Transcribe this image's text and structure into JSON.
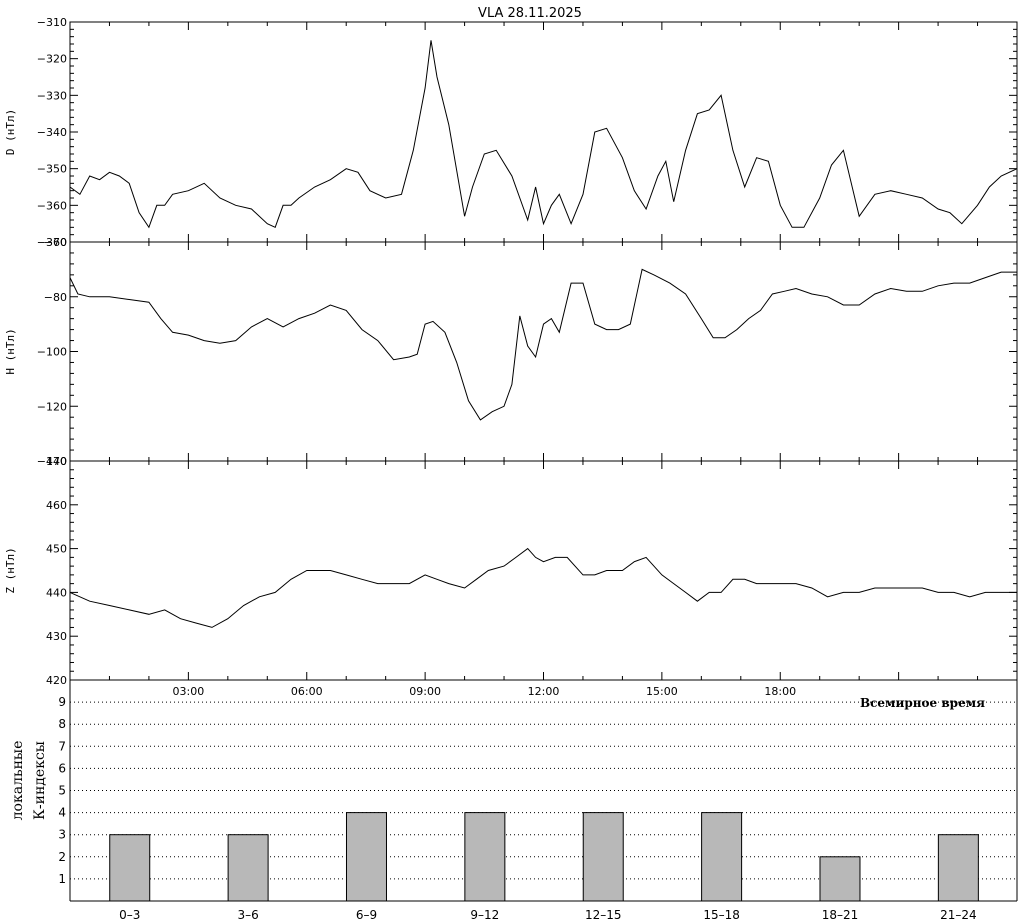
{
  "title": "VLA   28.11.2025",
  "chart_data": [
    {
      "type": "line",
      "ylabel": "D (нТл)",
      "ylim": [
        -370,
        -310
      ],
      "yticks": [
        -370,
        -360,
        -350,
        -340,
        -330,
        -320,
        -310
      ],
      "xlim": [
        0,
        24
      ],
      "series": [
        {
          "x": [
            0,
            0.25,
            0.5,
            0.75,
            1,
            1.25,
            1.5,
            1.75,
            2,
            2.2,
            2.4,
            2.6,
            3,
            3.4,
            3.8,
            4.2,
            4.6,
            5,
            5.2,
            5.4,
            5.6,
            5.8,
            6.2,
            6.6,
            7,
            7.3,
            7.6,
            8,
            8.4,
            8.7,
            9,
            9.15,
            9.3,
            9.6,
            10,
            10.2,
            10.5,
            10.8,
            11.2,
            11.6,
            11.8,
            12,
            12.2,
            12.4,
            12.7,
            13,
            13.3,
            13.6,
            14,
            14.3,
            14.6,
            14.9,
            15.1,
            15.3,
            15.6,
            15.9,
            16.2,
            16.5,
            16.8,
            17.1,
            17.4,
            17.7,
            18,
            18.3,
            18.6,
            19,
            19.3,
            19.6,
            20,
            20.4,
            20.8,
            21.2,
            21.6,
            22,
            22.3,
            22.6,
            23,
            23.3,
            23.6,
            24
          ],
          "y": [
            -355,
            -357,
            -352,
            -353,
            -351,
            -352,
            -354,
            -362,
            -366,
            -360,
            -360,
            -357,
            -356,
            -354,
            -358,
            -360,
            -361,
            -365,
            -366,
            -360,
            -360,
            -358,
            -355,
            -353,
            -350,
            -351,
            -356,
            -358,
            -357,
            -345,
            -328,
            -315,
            -325,
            -338,
            -363,
            -355,
            -346,
            -345,
            -352,
            -364,
            -355,
            -365,
            -360,
            -357,
            -365,
            -357,
            -340,
            -339,
            -347,
            -356,
            -361,
            -352,
            -348,
            -359,
            -345,
            -335,
            -334,
            -330,
            -345,
            -355,
            -347,
            -348,
            -360,
            -366,
            -366,
            -358,
            -349,
            -345,
            -363,
            -357,
            -356,
            -357,
            -358,
            -361,
            -362,
            -365,
            -360,
            -355,
            -352,
            -350
          ]
        }
      ]
    },
    {
      "type": "line",
      "ylabel": "H (нТл)",
      "ylim": [
        -140,
        -60
      ],
      "yticks": [
        -140,
        -120,
        -100,
        -80,
        -60
      ],
      "xlim": [
        0,
        24
      ],
      "series": [
        {
          "x": [
            0,
            0.2,
            0.5,
            1,
            1.5,
            2,
            2.3,
            2.6,
            3,
            3.4,
            3.8,
            4.2,
            4.6,
            5,
            5.4,
            5.8,
            6.2,
            6.6,
            7,
            7.4,
            7.8,
            8.2,
            8.6,
            8.8,
            9,
            9.2,
            9.5,
            9.8,
            10.1,
            10.4,
            10.7,
            11,
            11.2,
            11.4,
            11.6,
            11.8,
            12,
            12.2,
            12.4,
            12.7,
            13,
            13.3,
            13.6,
            13.9,
            14.2,
            14.5,
            14.8,
            15.2,
            15.6,
            16,
            16.3,
            16.6,
            16.9,
            17.2,
            17.5,
            17.8,
            18.1,
            18.4,
            18.8,
            19.2,
            19.6,
            20,
            20.4,
            20.8,
            21.2,
            21.6,
            22,
            22.4,
            22.8,
            23.2,
            23.6,
            24
          ],
          "y": [
            -73,
            -79,
            -80,
            -80,
            -81,
            -82,
            -88,
            -93,
            -94,
            -96,
            -97,
            -96,
            -91,
            -88,
            -91,
            -88,
            -86,
            -83,
            -85,
            -92,
            -96,
            -103,
            -102,
            -101,
            -90,
            -89,
            -93,
            -104,
            -118,
            -125,
            -122,
            -120,
            -112,
            -87,
            -98,
            -102,
            -90,
            -88,
            -93,
            -75,
            -75,
            -90,
            -92,
            -92,
            -90,
            -70,
            -72,
            -75,
            -79,
            -88,
            -95,
            -95,
            -92,
            -88,
            -85,
            -79,
            -78,
            -77,
            -79,
            -80,
            -83,
            -83,
            -79,
            -77,
            -78,
            -78,
            -76,
            -75,
            -75,
            -73,
            -71,
            -71
          ]
        }
      ]
    },
    {
      "type": "line",
      "ylabel": "Z (нТл)",
      "ylim": [
        420,
        470
      ],
      "yticks": [
        420,
        430,
        440,
        450,
        460,
        470
      ],
      "xlim": [
        0,
        24
      ],
      "xticks": [
        "03:00",
        "06:00",
        "09:00",
        "12:00",
        "15:00",
        "18:00"
      ],
      "xlabel": "Всемирное время",
      "series": [
        {
          "x": [
            0,
            0.5,
            1,
            1.5,
            2,
            2.4,
            2.8,
            3.2,
            3.6,
            4,
            4.4,
            4.8,
            5.2,
            5.6,
            6,
            6.3,
            6.6,
            7,
            7.4,
            7.8,
            8.2,
            8.6,
            9,
            9.3,
            9.6,
            10,
            10.3,
            10.6,
            11,
            11.3,
            11.6,
            11.8,
            12,
            12.3,
            12.6,
            13,
            13.3,
            13.6,
            14,
            14.3,
            14.6,
            15,
            15.3,
            15.6,
            15.9,
            16.2,
            16.5,
            16.8,
            17.1,
            17.4,
            17.7,
            18,
            18.4,
            18.8,
            19.2,
            19.6,
            20,
            20.4,
            20.8,
            21.2,
            21.6,
            22,
            22.4,
            22.8,
            23.2,
            23.6,
            24
          ],
          "y": [
            440,
            438,
            437,
            436,
            435,
            436,
            434,
            433,
            432,
            434,
            437,
            439,
            440,
            443,
            445,
            445,
            445,
            444,
            443,
            442,
            442,
            442,
            444,
            443,
            442,
            441,
            443,
            445,
            446,
            448,
            450,
            448,
            447,
            448,
            448,
            444,
            444,
            445,
            445,
            447,
            448,
            444,
            442,
            440,
            438,
            440,
            440,
            443,
            443,
            442,
            442,
            442,
            442,
            441,
            439,
            440,
            440,
            441,
            441,
            441,
            441,
            440,
            440,
            439,
            440,
            440,
            440
          ]
        }
      ]
    },
    {
      "type": "bar",
      "ylabel": "К-индексы",
      "ylabel2": "локальные",
      "ylim": [
        0,
        10
      ],
      "yticks": [
        1,
        2,
        3,
        4,
        5,
        6,
        7,
        8,
        9
      ],
      "categories": [
        "0–3",
        "3–6",
        "6–9",
        "9–12",
        "12–15",
        "15–18",
        "18–21",
        "21–24"
      ],
      "values": [
        3,
        3,
        4,
        4,
        4,
        4,
        2,
        3
      ],
      "bar_color": "#b8b8b8"
    }
  ]
}
